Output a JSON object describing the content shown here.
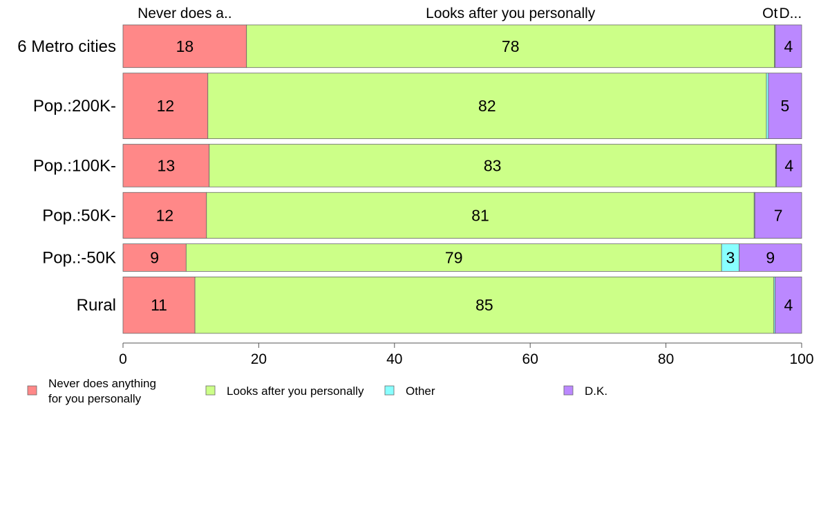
{
  "chart_data": {
    "type": "bar",
    "orientation": "horizontal",
    "stacked": true,
    "categories": [
      "6 Metro cities",
      "Pop.:200K-",
      "Pop.:100K-",
      "Pop.:50K-",
      "Pop.:-50K",
      "Rural"
    ],
    "series": [
      {
        "name": "Never does anything for you personally",
        "legend_lines": [
          "Never does anything",
          "for you personally"
        ],
        "top_label": "Never does a..",
        "color": "#ff8888",
        "values": [
          18.2,
          12.5,
          12.7,
          12.3,
          9.3,
          10.6
        ]
      },
      {
        "name": "Looks after you personally",
        "legend_lines": [
          "Looks after you personally"
        ],
        "top_label": "Looks after you personally",
        "color": "#ccff88",
        "values": [
          77.8,
          82.3,
          83.5,
          80.7,
          78.9,
          85.3
        ]
      },
      {
        "name": "Other",
        "legend_lines": [
          "Other"
        ],
        "top_label": "Ot",
        "color": "#88ffff",
        "values": [
          0.1,
          0.3,
          0.1,
          0.1,
          2.6,
          0.2
        ]
      },
      {
        "name": "D.K.",
        "legend_lines": [
          "D.K."
        ],
        "top_label": "D...",
        "color": "#bb88ff",
        "values": [
          3.9,
          4.9,
          3.7,
          6.9,
          9.2,
          3.9
        ]
      }
    ],
    "data_labels": [
      [
        "18",
        "78",
        "",
        "4"
      ],
      [
        "12",
        "82",
        "",
        "5"
      ],
      [
        "13",
        "83",
        "",
        "4"
      ],
      [
        "12",
        "81",
        "",
        "7"
      ],
      [
        "9",
        "79",
        "3",
        "9"
      ],
      [
        "11",
        "85",
        "",
        "4"
      ]
    ],
    "bar_weights": [
      0.93,
      1.43,
      0.93,
      1.0,
      0.6,
      1.23
    ],
    "xlim": [
      0,
      100
    ],
    "xticks": [
      0,
      20,
      40,
      60,
      80,
      100
    ],
    "title": "",
    "xlabel": "",
    "ylabel": "",
    "legend_position": "bottom",
    "grid": false
  }
}
